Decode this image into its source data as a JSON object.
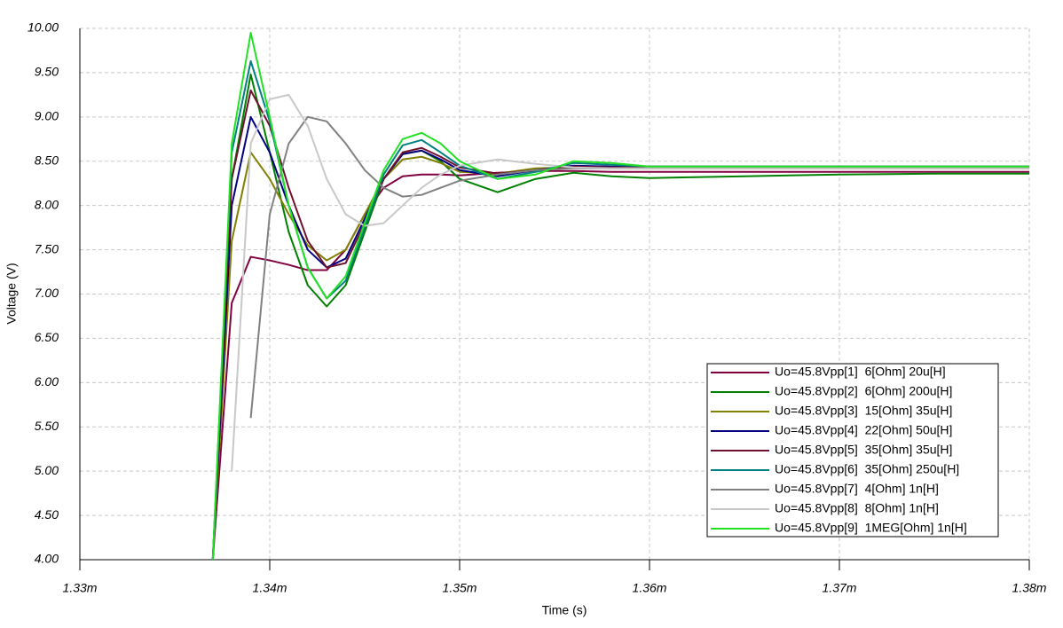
{
  "chart_data": {
    "type": "line",
    "xlabel": "Time (s)",
    "ylabel": "Voltage (V)",
    "x": [
      0.001337,
      0.001338,
      0.001339,
      0.00134,
      0.001341,
      0.001342,
      0.001343,
      0.001344,
      0.001345,
      0.001346,
      0.001347,
      0.001348,
      0.001349,
      0.00135,
      0.001352,
      0.001354,
      0.001356,
      0.001358,
      0.00136,
      0.001365,
      0.00137,
      0.001375,
      0.00138
    ],
    "xlim": [
      0.00133,
      0.00138
    ],
    "xticks": [
      {
        "value": 0.00133,
        "label": "1.33m"
      },
      {
        "value": 0.00134,
        "label": "1.34m"
      },
      {
        "value": 0.00135,
        "label": "1.35m"
      },
      {
        "value": 0.00136,
        "label": "1.36m"
      },
      {
        "value": 0.00137,
        "label": "1.37m"
      },
      {
        "value": 0.00138,
        "label": "1.38m"
      }
    ],
    "ylim": [
      4,
      10
    ],
    "yticks": [
      {
        "value": 4,
        "label": "4.00"
      },
      {
        "value": 4.5,
        "label": "4.50"
      },
      {
        "value": 5,
        "label": "5.00"
      },
      {
        "value": 5.5,
        "label": "5.50"
      },
      {
        "value": 6,
        "label": "6.00"
      },
      {
        "value": 6.5,
        "label": "6.50"
      },
      {
        "value": 7,
        "label": "7.00"
      },
      {
        "value": 7.5,
        "label": "7.50"
      },
      {
        "value": 8,
        "label": "8.00"
      },
      {
        "value": 8.5,
        "label": "8.50"
      },
      {
        "value": 9,
        "label": "9.00"
      },
      {
        "value": 9.5,
        "label": "9.50"
      },
      {
        "value": 10,
        "label": "10.00"
      }
    ],
    "grid": true,
    "legend": "lower right",
    "series": [
      {
        "name": "Uo=45.8Vpp[1]  6[Ohm] 20u[H]",
        "color": "#800040",
        "values": [
          4.0,
          6.9,
          7.42,
          7.38,
          7.33,
          7.27,
          7.27,
          7.5,
          7.9,
          8.2,
          8.33,
          8.35,
          8.35,
          8.34,
          8.37,
          8.39,
          8.39,
          8.38,
          8.38,
          8.38,
          8.38,
          8.38,
          8.38
        ]
      },
      {
        "name": "Uo=45.8Vpp[2]  6[Ohm] 200u[H]",
        "color": "#008000",
        "values": [
          4.0,
          8.3,
          9.48,
          8.6,
          7.7,
          7.1,
          6.86,
          7.1,
          7.7,
          8.3,
          8.58,
          8.62,
          8.5,
          8.3,
          8.15,
          8.3,
          8.37,
          8.33,
          8.31,
          8.33,
          8.35,
          8.36,
          8.36
        ]
      },
      {
        "name": "Uo=45.8Vpp[3]  15[Ohm] 35u[H]",
        "color": "#808000",
        "values": [
          4.0,
          7.6,
          8.6,
          8.3,
          7.9,
          7.55,
          7.38,
          7.5,
          7.9,
          8.3,
          8.52,
          8.55,
          8.48,
          8.38,
          8.36,
          8.42,
          8.43,
          8.42,
          8.42,
          8.42,
          8.42,
          8.42,
          8.42
        ]
      },
      {
        "name": "Uo=45.8Vpp[4]  22[Ohm] 50u[H]",
        "color": "#000080",
        "values": [
          4.0,
          8.0,
          9.0,
          8.6,
          8.0,
          7.5,
          7.3,
          7.4,
          7.85,
          8.3,
          8.58,
          8.62,
          8.52,
          8.4,
          8.33,
          8.4,
          8.45,
          8.44,
          8.44,
          8.44,
          8.44,
          8.44,
          8.44
        ]
      },
      {
        "name": "Uo=45.8Vpp[5]  35[Ohm] 35u[H]",
        "color": "#70102f",
        "values": [
          4.0,
          8.3,
          9.3,
          8.9,
          8.2,
          7.6,
          7.3,
          7.35,
          7.8,
          8.3,
          8.6,
          8.65,
          8.55,
          8.43,
          8.36,
          8.4,
          8.44,
          8.43,
          8.43,
          8.43,
          8.43,
          8.43,
          8.43
        ]
      },
      {
        "name": "Uo=45.8Vpp[6]  35[Ohm] 250u[H]",
        "color": "#008080",
        "values": [
          4.0,
          8.6,
          9.63,
          8.95,
          8.0,
          7.3,
          6.95,
          7.15,
          7.75,
          8.35,
          8.68,
          8.74,
          8.6,
          8.45,
          8.3,
          8.38,
          8.48,
          8.46,
          8.44,
          8.44,
          8.44,
          8.44,
          8.44
        ]
      },
      {
        "name": "Uo=45.8Vpp[7]  4[Ohm] 1n[H]",
        "color": "#808080",
        "values": [
          null,
          null,
          5.6,
          7.9,
          8.7,
          9.0,
          8.95,
          8.7,
          8.4,
          8.2,
          8.1,
          8.12,
          8.2,
          8.28,
          8.35,
          8.4,
          8.42,
          8.42,
          8.42,
          8.42,
          8.42,
          8.42,
          8.42
        ]
      },
      {
        "name": "Uo=45.8Vpp[8]  8[Ohm] 1n[H]",
        "color": "#c8c8c8",
        "values": [
          null,
          5.0,
          8.7,
          9.2,
          9.25,
          8.9,
          8.3,
          7.9,
          7.77,
          7.8,
          8.0,
          8.2,
          8.35,
          8.45,
          8.52,
          8.47,
          8.43,
          8.42,
          8.42,
          8.42,
          8.42,
          8.42,
          8.42
        ]
      },
      {
        "name": "Uo=45.8Vpp[9]  1MEG[Ohm] 1n[H]",
        "color": "#22e022",
        "values": [
          4.0,
          8.7,
          9.95,
          9.0,
          8.0,
          7.3,
          6.95,
          7.2,
          7.8,
          8.4,
          8.75,
          8.82,
          8.7,
          8.5,
          8.3,
          8.35,
          8.5,
          8.48,
          8.44,
          8.44,
          8.44,
          8.44,
          8.44
        ]
      }
    ]
  }
}
